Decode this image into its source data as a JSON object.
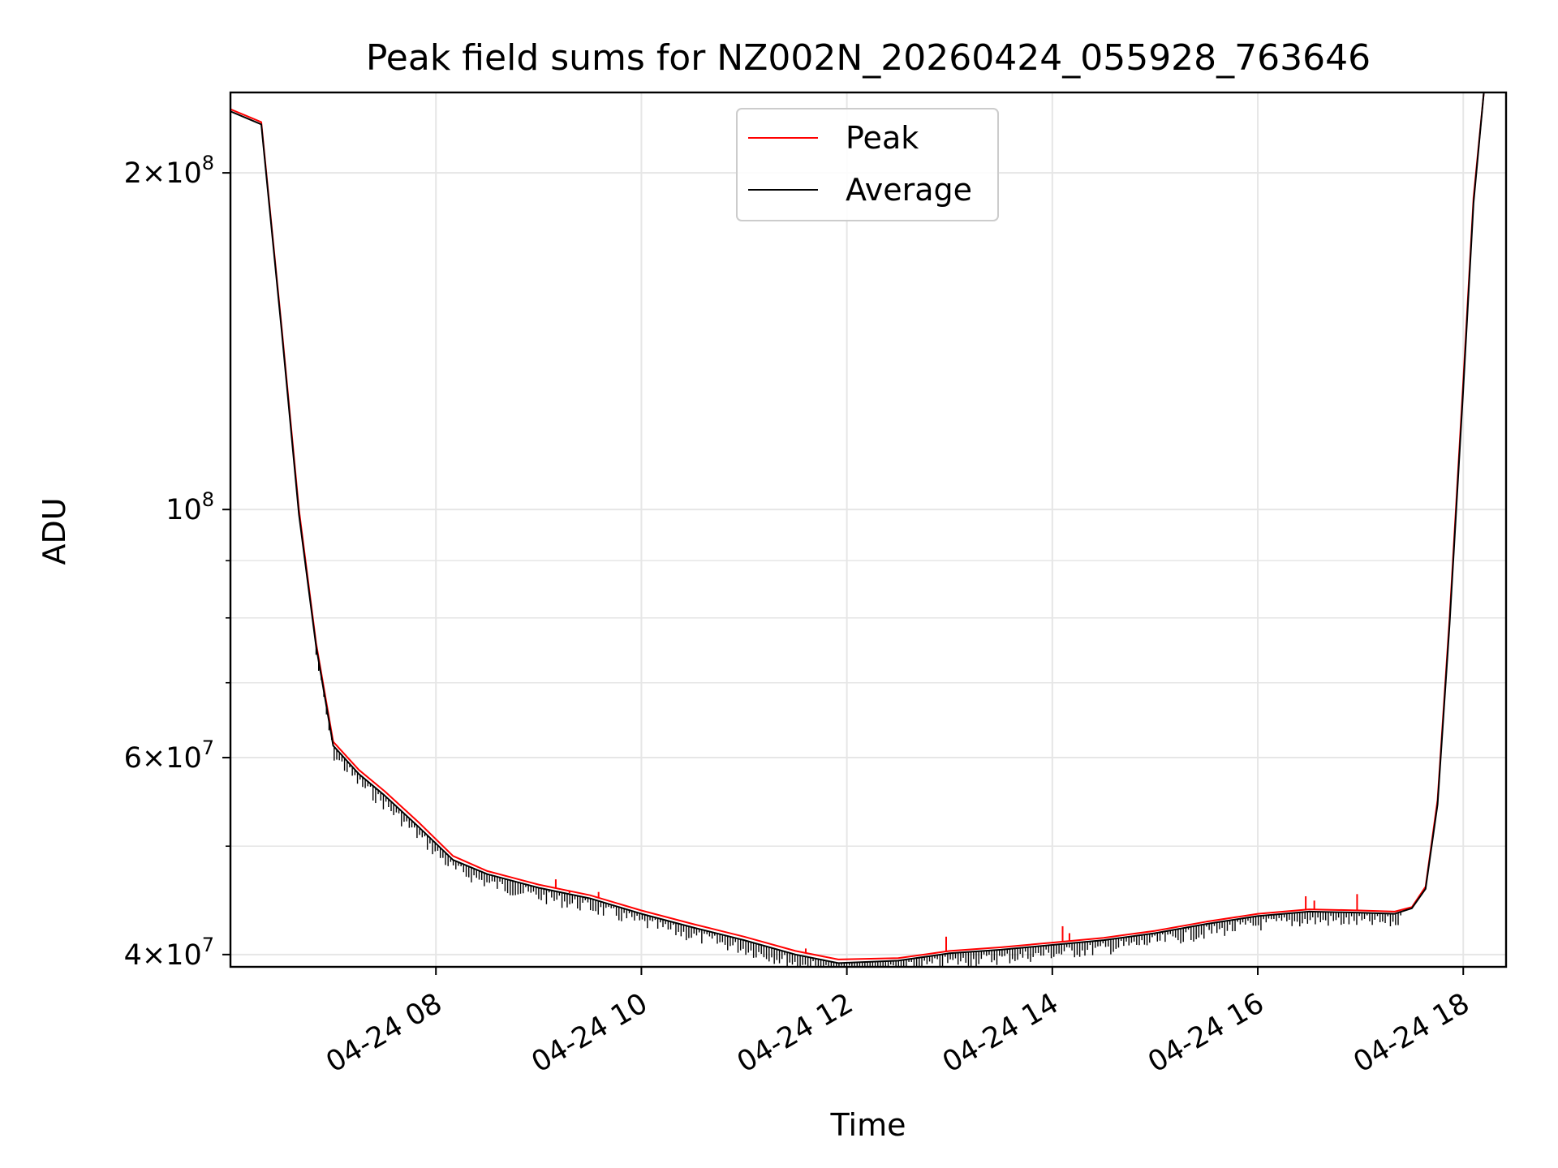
{
  "chart_data": {
    "type": "line",
    "title": "Peak field sums for NZ002N_20260424_055928_763646",
    "xlabel": "Time",
    "ylabel": "ADU",
    "y_scale": "log",
    "xlim": [
      "2026-04-24 06:00",
      "2026-04-24 18:25"
    ],
    "ylim": [
      39000000,
      236000000
    ],
    "grid": true,
    "legend_position": "top-center",
    "x_ticks": [
      {
        "value": "2026-04-24 08:00",
        "label": "04-24 08"
      },
      {
        "value": "2026-04-24 10:00",
        "label": "04-24 10"
      },
      {
        "value": "2026-04-24 12:00",
        "label": "04-24 12"
      },
      {
        "value": "2026-04-24 14:00",
        "label": "04-24 14"
      },
      {
        "value": "2026-04-24 16:00",
        "label": "04-24 16"
      },
      {
        "value": "2026-04-24 18:00",
        "label": "04-24 18"
      }
    ],
    "y_ticks": [
      {
        "value": 40000000,
        "base": "4",
        "exp": "7"
      },
      {
        "value": 60000000,
        "base": "6",
        "exp": "7"
      },
      {
        "value": 100000000,
        "base": "",
        "exp": "8"
      },
      {
        "value": 200000000,
        "base": "2",
        "exp": "8"
      }
    ],
    "y_minor_ticks": [
      50000000,
      70000000,
      80000000,
      90000000
    ],
    "series": [
      {
        "name": "Peak",
        "color": "#ff0000",
        "x": [
          "2026-04-24 06:00",
          "2026-04-24 06:12",
          "2026-04-24 06:18",
          "2026-04-24 06:30",
          "2026-04-24 06:40",
          "2026-04-24 06:50",
          "2026-04-24 07:00",
          "2026-04-24 07:15",
          "2026-04-24 07:30",
          "2026-04-24 07:50",
          "2026-04-24 08:10",
          "2026-04-24 08:30",
          "2026-04-24 09:00",
          "2026-04-24 09:30",
          "2026-04-24 10:00",
          "2026-04-24 10:30",
          "2026-04-24 11:00",
          "2026-04-24 11:30",
          "2026-04-24 11:55",
          "2026-04-24 12:30",
          "2026-04-24 13:00",
          "2026-04-24 13:30",
          "2026-04-24 14:00",
          "2026-04-24 14:30",
          "2026-04-24 15:00",
          "2026-04-24 15:30",
          "2026-04-24 16:00",
          "2026-04-24 16:30",
          "2026-04-24 17:00",
          "2026-04-24 17:20",
          "2026-04-24 17:30",
          "2026-04-24 17:38",
          "2026-04-24 17:45",
          "2026-04-24 17:52",
          "2026-04-24 18:00",
          "2026-04-24 18:06",
          "2026-04-24 18:12"
        ],
        "y": [
          228000000,
          224000000,
          222000000,
          145000000,
          100000000,
          76000000,
          62000000,
          58500000,
          56000000,
          52500000,
          49000000,
          47500000,
          46200000,
          45200000,
          43800000,
          42600000,
          41500000,
          40300000,
          39600000,
          39700000,
          40300000,
          40600000,
          41000000,
          41400000,
          42000000,
          42800000,
          43500000,
          43900000,
          43800000,
          43700000,
          44100000,
          46000000,
          55000000,
          80000000,
          130000000,
          190000000,
          236000000
        ],
        "spikes": [
          {
            "x": "2026-04-24 07:38",
            "y": 54500000
          },
          {
            "x": "2026-04-24 09:10",
            "y": 46700000
          },
          {
            "x": "2026-04-24 09:18",
            "y": 45400000
          },
          {
            "x": "2026-04-24 09:35",
            "y": 45500000
          },
          {
            "x": "2026-04-24 11:36",
            "y": 40500000
          },
          {
            "x": "2026-04-24 12:58",
            "y": 41500000
          },
          {
            "x": "2026-04-24 14:06",
            "y": 42400000
          },
          {
            "x": "2026-04-24 14:10",
            "y": 41800000
          },
          {
            "x": "2026-04-24 16:28",
            "y": 45100000
          },
          {
            "x": "2026-04-24 16:33",
            "y": 44700000
          },
          {
            "x": "2026-04-24 16:58",
            "y": 45300000
          }
        ]
      },
      {
        "name": "Average",
        "color": "#000000",
        "x": [
          "2026-04-24 06:00",
          "2026-04-24 06:12",
          "2026-04-24 06:18",
          "2026-04-24 06:30",
          "2026-04-24 06:40",
          "2026-04-24 06:50",
          "2026-04-24 07:00",
          "2026-04-24 07:15",
          "2026-04-24 07:30",
          "2026-04-24 07:50",
          "2026-04-24 08:10",
          "2026-04-24 08:30",
          "2026-04-24 09:00",
          "2026-04-24 09:30",
          "2026-04-24 10:00",
          "2026-04-24 10:30",
          "2026-04-24 11:00",
          "2026-04-24 11:30",
          "2026-04-24 11:55",
          "2026-04-24 12:30",
          "2026-04-24 13:00",
          "2026-04-24 13:30",
          "2026-04-24 14:00",
          "2026-04-24 14:30",
          "2026-04-24 15:00",
          "2026-04-24 15:30",
          "2026-04-24 16:00",
          "2026-04-24 16:30",
          "2026-04-24 17:00",
          "2026-04-24 17:20",
          "2026-04-24 17:30",
          "2026-04-24 17:38",
          "2026-04-24 17:45",
          "2026-04-24 17:52",
          "2026-04-24 18:00",
          "2026-04-24 18:06",
          "2026-04-24 18:12"
        ],
        "y": [
          227000000,
          223000000,
          221000000,
          144000000,
          99000000,
          75500000,
          61500000,
          58000000,
          55500000,
          52000000,
          48600000,
          47200000,
          45900000,
          44900000,
          43500000,
          42300000,
          41200000,
          40000000,
          39300000,
          39500000,
          40100000,
          40400000,
          40800000,
          41200000,
          41800000,
          42600000,
          43300000,
          43700000,
          43600000,
          43500000,
          44000000,
          45800000,
          54500000,
          79000000,
          128000000,
          188000000,
          236000000
        ]
      }
    ]
  }
}
